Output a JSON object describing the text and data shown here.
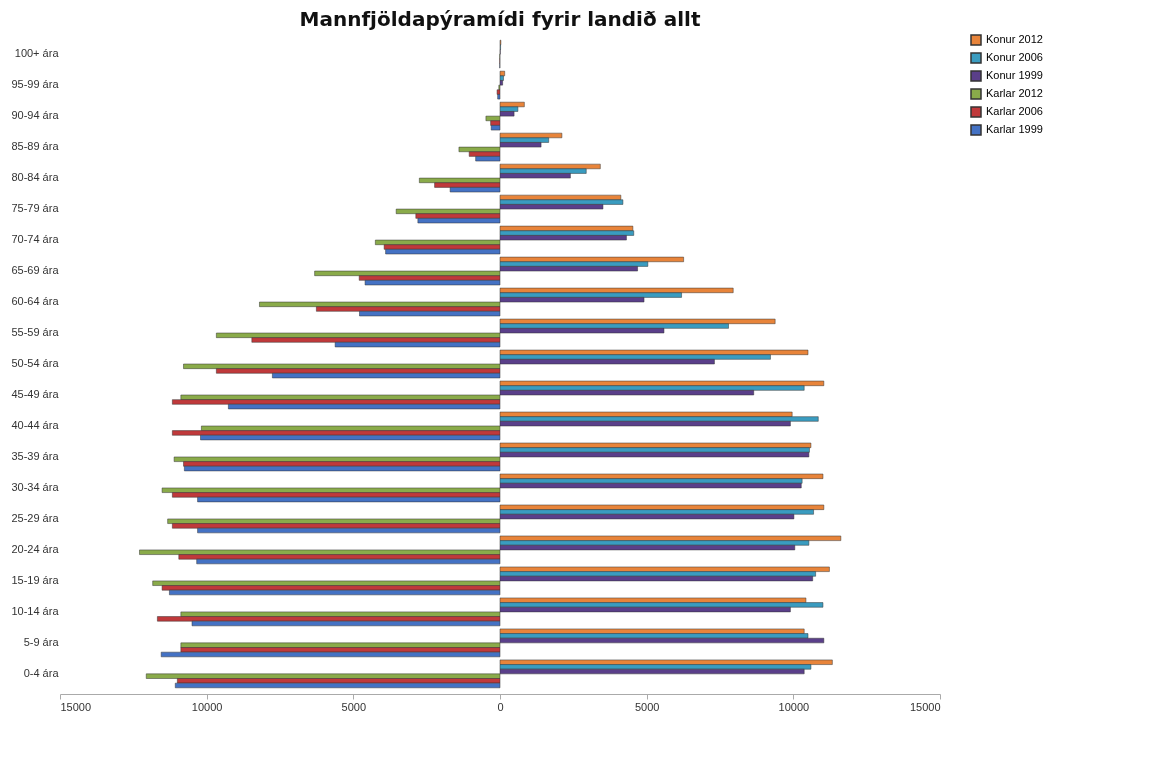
{
  "chart_data": {
    "type": "bar",
    "orientation": "horizontal",
    "title": "Mannfjöldapýramídi fyrir landið allt",
    "categories": [
      "100+ ára",
      "95-99 ára",
      "90-94 ára",
      "85-89 ára",
      "80-84 ára",
      "75-79 ára",
      "70-74 ára",
      "65-69 ára",
      "60-64 ára",
      "55-59 ára",
      "50-54 ára",
      "45-49 ára",
      "40-44 ára",
      "35-39 ára",
      "30-34 ára",
      "25-29 ára",
      "20-24 ára",
      "15-19 ára",
      "10-14 ára",
      "5-9 ára",
      "0-4 ára"
    ],
    "series": [
      {
        "name": "Konur 2012",
        "color": "#e8843a",
        "values": [
          30,
          160,
          830,
          2110,
          3420,
          4120,
          4530,
          6260,
          7950,
          9380,
          10500,
          11040,
          9960,
          10600,
          11010,
          11040,
          11620,
          11230,
          10430,
          10370,
          11330
        ]
      },
      {
        "name": "Konur 2006",
        "color": "#3a9cc0",
        "values": [
          20,
          120,
          610,
          1660,
          2940,
          4190,
          4560,
          5040,
          6190,
          7790,
          9220,
          10370,
          10850,
          10550,
          10300,
          10690,
          10530,
          10760,
          11010,
          10500,
          10600
        ]
      },
      {
        "name": "Konur 1999",
        "color": "#5a3f8a",
        "values": [
          10,
          90,
          480,
          1400,
          2400,
          3510,
          4310,
          4690,
          4910,
          5590,
          7310,
          8650,
          9900,
          10530,
          10270,
          10020,
          10050,
          10660,
          9900,
          11040,
          10370
        ]
      },
      {
        "name": "Karlar 2012",
        "color": "#8aab4a",
        "values": [
          -10,
          -40,
          -480,
          -1400,
          -2750,
          -3540,
          -4250,
          -6320,
          -8200,
          -9670,
          -10790,
          -10880,
          -10180,
          -11110,
          -11520,
          -11330,
          -12290,
          -11840,
          -10880,
          -10880,
          -12060
        ]
      },
      {
        "name": "Karlar 2006",
        "color": "#c0393b",
        "values": [
          -10,
          -100,
          -320,
          -1050,
          -2230,
          -2870,
          -3950,
          -4800,
          -6260,
          -8460,
          -9670,
          -11170,
          -11170,
          -10790,
          -11170,
          -11170,
          -10950,
          -11520,
          -11680,
          -10880,
          -11000
        ]
      },
      {
        "name": "Karlar 1999",
        "color": "#4472c4",
        "values": [
          -10,
          -80,
          -300,
          -830,
          -1700,
          -2800,
          -3900,
          -4600,
          -4790,
          -5620,
          -7760,
          -9260,
          -10210,
          -10760,
          -10310,
          -10310,
          -10340,
          -11270,
          -10500,
          -11550,
          -11070
        ]
      }
    ],
    "xlim": [
      -15000,
      15000
    ],
    "xticks": [
      {
        "value": -15000,
        "label": "15000"
      },
      {
        "value": -10000,
        "label": "10000"
      },
      {
        "value": -5000,
        "label": "5000"
      },
      0,
      5000,
      10000,
      15000
    ],
    "grid": false,
    "legend": "right"
  }
}
